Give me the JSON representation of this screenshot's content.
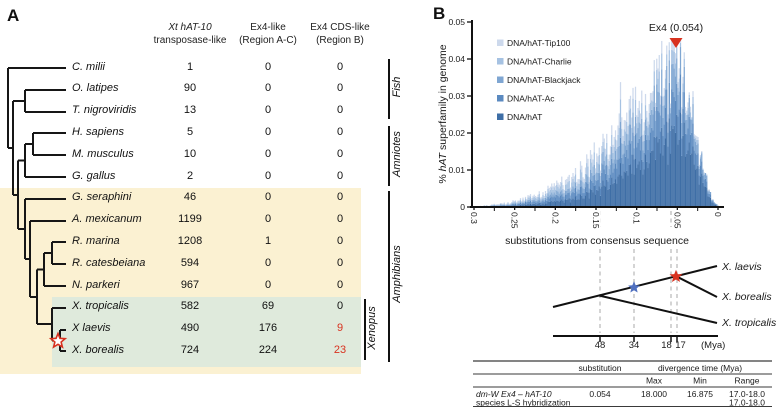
{
  "figure": {
    "panelA_label": "A",
    "panelB_label": "B"
  },
  "panelA": {
    "header_columns": [
      {
        "line1": "Xt hAT-10",
        "line2": "transposase-like",
        "line1_italic": true
      },
      {
        "line1": "Ex4-like",
        "line2": "(Region A-C)",
        "line1_italic": false
      },
      {
        "line1": "Ex4 CDS-like",
        "line2": "(Region B)",
        "line1_italic": false
      }
    ],
    "species_rows": [
      {
        "name": "C. milii",
        "values": [
          "1",
          "0",
          "0"
        ],
        "red_value_indices": []
      },
      {
        "name": "O. latipes",
        "values": [
          "90",
          "0",
          "0"
        ],
        "red_value_indices": []
      },
      {
        "name": "T. nigroviridis",
        "values": [
          "13",
          "0",
          "0"
        ],
        "red_value_indices": []
      },
      {
        "name": "H. sapiens",
        "values": [
          "5",
          "0",
          "0"
        ],
        "red_value_indices": []
      },
      {
        "name": "M. musculus",
        "values": [
          "10",
          "0",
          "0"
        ],
        "red_value_indices": []
      },
      {
        "name": "G. gallus",
        "values": [
          "2",
          "0",
          "0"
        ],
        "red_value_indices": []
      },
      {
        "name": "G. seraphini",
        "values": [
          "46",
          "0",
          "0"
        ],
        "red_value_indices": []
      },
      {
        "name": "A. mexicanum",
        "values": [
          "1199",
          "0",
          "0"
        ],
        "red_value_indices": []
      },
      {
        "name": "R. marina",
        "values": [
          "1208",
          "1",
          "0"
        ],
        "red_value_indices": []
      },
      {
        "name": "R. catesbeiana",
        "values": [
          "594",
          "0",
          "0"
        ],
        "red_value_indices": []
      },
      {
        "name": "N. parkeri",
        "values": [
          "967",
          "0",
          "0"
        ],
        "red_value_indices": []
      },
      {
        "name": "X. tropicalis",
        "values": [
          "582",
          "69",
          "0"
        ],
        "red_value_indices": []
      },
      {
        "name": "X laevis",
        "values": [
          "490",
          "176",
          "9"
        ],
        "red_value_indices": [
          2
        ]
      },
      {
        "name": "X. borealis",
        "values": [
          "724",
          "224",
          "23"
        ],
        "red_value_indices": [
          2
        ]
      }
    ],
    "group_labels": [
      "Fish",
      "Amniotes",
      "Amphibians",
      "Xenopus"
    ],
    "colors": {
      "amphibians_bg": "#fbf1d2",
      "xenopus_bg": "#dfeadc",
      "highlight_value": "#d8321f",
      "star_stroke": "#d8321f"
    }
  },
  "panelB": {
    "legend": [
      {
        "label": "DNA/hAT-Tip100",
        "color": "#cdd9ec"
      },
      {
        "label": "DNA/hAT-Charlie",
        "color": "#a6c2e2"
      },
      {
        "label": "DNA/hAT-Blackjack",
        "color": "#7fa6d2"
      },
      {
        "label": "DNA/hAT-Ac",
        "color": "#5b8ac0"
      },
      {
        "label": "DNA/hAT",
        "color": "#3e6ea6"
      }
    ],
    "annotation": {
      "text": "Ex4 (0.054)",
      "marker_color": "#d8321f"
    },
    "axes": {
      "ylabel_prefix": "% ",
      "ylabel_italic": "hAT",
      "ylabel_suffix": " superfamily in genome",
      "xlabel": "substitutions from consensus sequence",
      "y_ticks": [
        "0.05",
        "0.04",
        "0.03",
        "0.02",
        "0.01",
        "0"
      ],
      "x_ticks": [
        "0.3",
        "0.25",
        "0.2",
        "0.15",
        "0.1",
        "0.05",
        "0"
      ]
    },
    "tree": {
      "taxa": [
        "X. laevis",
        "X. borealis",
        "X. tropicalis"
      ],
      "star_blue": "#5070c0",
      "star_red": "#d8321f"
    },
    "timeline": {
      "tick_labels": [
        "48",
        "34",
        "18",
        "17"
      ],
      "unit": "(Mya)"
    },
    "table": {
      "header_substitution": "substitution",
      "header_divergence": "divergence time (Mya)",
      "sub_headers": [
        "Max",
        "Min",
        "Range"
      ],
      "rows": [
        {
          "label": "dm-W Ex4 – hAT-10",
          "italic": true,
          "substitution": "0.054",
          "max": "18.000",
          "min": "16.875",
          "range": "17.0-18.0"
        },
        {
          "label": "species L-S hybridization",
          "italic": false,
          "substitution": "",
          "max": "",
          "min": "",
          "range": "17.0-18.0"
        }
      ]
    }
  },
  "chart_data": {
    "type": "area",
    "subtype": "stacked histogram of hAT transposon copies",
    "title": "",
    "xlabel": "substitutions from consensus sequence",
    "ylabel": "% hAT superfamily in genome",
    "x_range": [
      0.3,
      0
    ],
    "x_axis_reversed": true,
    "ylim": [
      0,
      0.05
    ],
    "x_tick_values": [
      0.3,
      0.25,
      0.2,
      0.15,
      0.1,
      0.05,
      0
    ],
    "y_tick_values": [
      0.05,
      0.04,
      0.03,
      0.02,
      0.01,
      0
    ],
    "grid": false,
    "legend_position": "upper left",
    "series": [
      {
        "name": "DNA/hAT-Tip100",
        "color": "#cdd9ec",
        "approx_share": 0.11
      },
      {
        "name": "DNA/hAT-Charlie",
        "color": "#a6c2e2",
        "approx_share": 0.14
      },
      {
        "name": "DNA/hAT-Blackjack",
        "color": "#7fa6d2",
        "approx_share": 0.15
      },
      {
        "name": "DNA/hAT-Ac",
        "color": "#5b8ac0",
        "approx_share": 0.2
      },
      {
        "name": "DNA/hAT",
        "color": "#3e6ea6",
        "approx_share": 0.4
      }
    ],
    "envelope": {
      "x": [
        0.3,
        0.28,
        0.26,
        0.24,
        0.22,
        0.2,
        0.18,
        0.16,
        0.14,
        0.12,
        0.1,
        0.09,
        0.08,
        0.07,
        0.06,
        0.054,
        0.05,
        0.04,
        0.03,
        0.02,
        0.01,
        0.005,
        0.0
      ],
      "total": [
        0.0002,
        0.0006,
        0.0013,
        0.0024,
        0.004,
        0.0062,
        0.009,
        0.013,
        0.018,
        0.024,
        0.03,
        0.033,
        0.036,
        0.0395,
        0.0428,
        0.044,
        0.0435,
        0.0385,
        0.028,
        0.015,
        0.004,
        0.0015,
        0.0004
      ]
    },
    "annotation": {
      "label": "Ex4 (0.054)",
      "x": 0.054
    },
    "divergence_guides_mya": [
      48,
      34,
      18,
      17
    ]
  }
}
